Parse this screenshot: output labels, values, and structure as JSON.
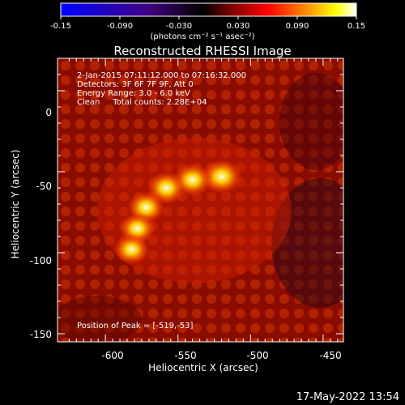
{
  "colorbar": {
    "ticks": [
      "-0.15",
      "-0.090",
      "-0.030",
      "0.030",
      "0.090",
      "0.15"
    ],
    "units": "(photons cm⁻² s⁻¹ asec⁻²)",
    "colormap": [
      "#0000ff",
      "#400080",
      "#000000",
      "#800000",
      "#ff0000",
      "#ff8000",
      "#ffff00",
      "#ffffff"
    ]
  },
  "title": "Reconstructed RHESSI Image",
  "info": {
    "line1": " 2-Jan-2015 07:11:12.000 to 07:16:32.000",
    "line2": "Detectors: 3F 6F 7F 9F, Att 0",
    "line3": "Energy Range: 3.0 - 6.0 keV",
    "line4": "Clean     Total counts: 2.28E+04"
  },
  "peak_label": "Position of Peak = [-519,-53]",
  "timestamp": "17-May-2022 13:54",
  "chart_data": {
    "type": "heatmap",
    "title": "Reconstructed RHESSI Image",
    "xlabel": "Heliocentric X (arcsec)",
    "ylabel": "Heliocentric Y (arcsec)",
    "x_ticks": [
      "-600",
      "-550",
      "-500",
      "-450"
    ],
    "y_ticks": [
      "0",
      "-50",
      "-100",
      "-150"
    ],
    "xlim": [
      -633,
      -436
    ],
    "ylim": [
      -155,
      20
    ],
    "peak": [
      -519,
      -53
    ],
    "sources": [
      {
        "x": -520,
        "y": -53,
        "intensity": 0.15
      },
      {
        "x": -540,
        "y": -55,
        "intensity": 0.13
      },
      {
        "x": -558,
        "y": -60,
        "intensity": 0.13
      },
      {
        "x": -572,
        "y": -72,
        "intensity": 0.12
      },
      {
        "x": -578,
        "y": -85,
        "intensity": 0.11
      },
      {
        "x": -582,
        "y": -98,
        "intensity": 0.1
      }
    ]
  }
}
